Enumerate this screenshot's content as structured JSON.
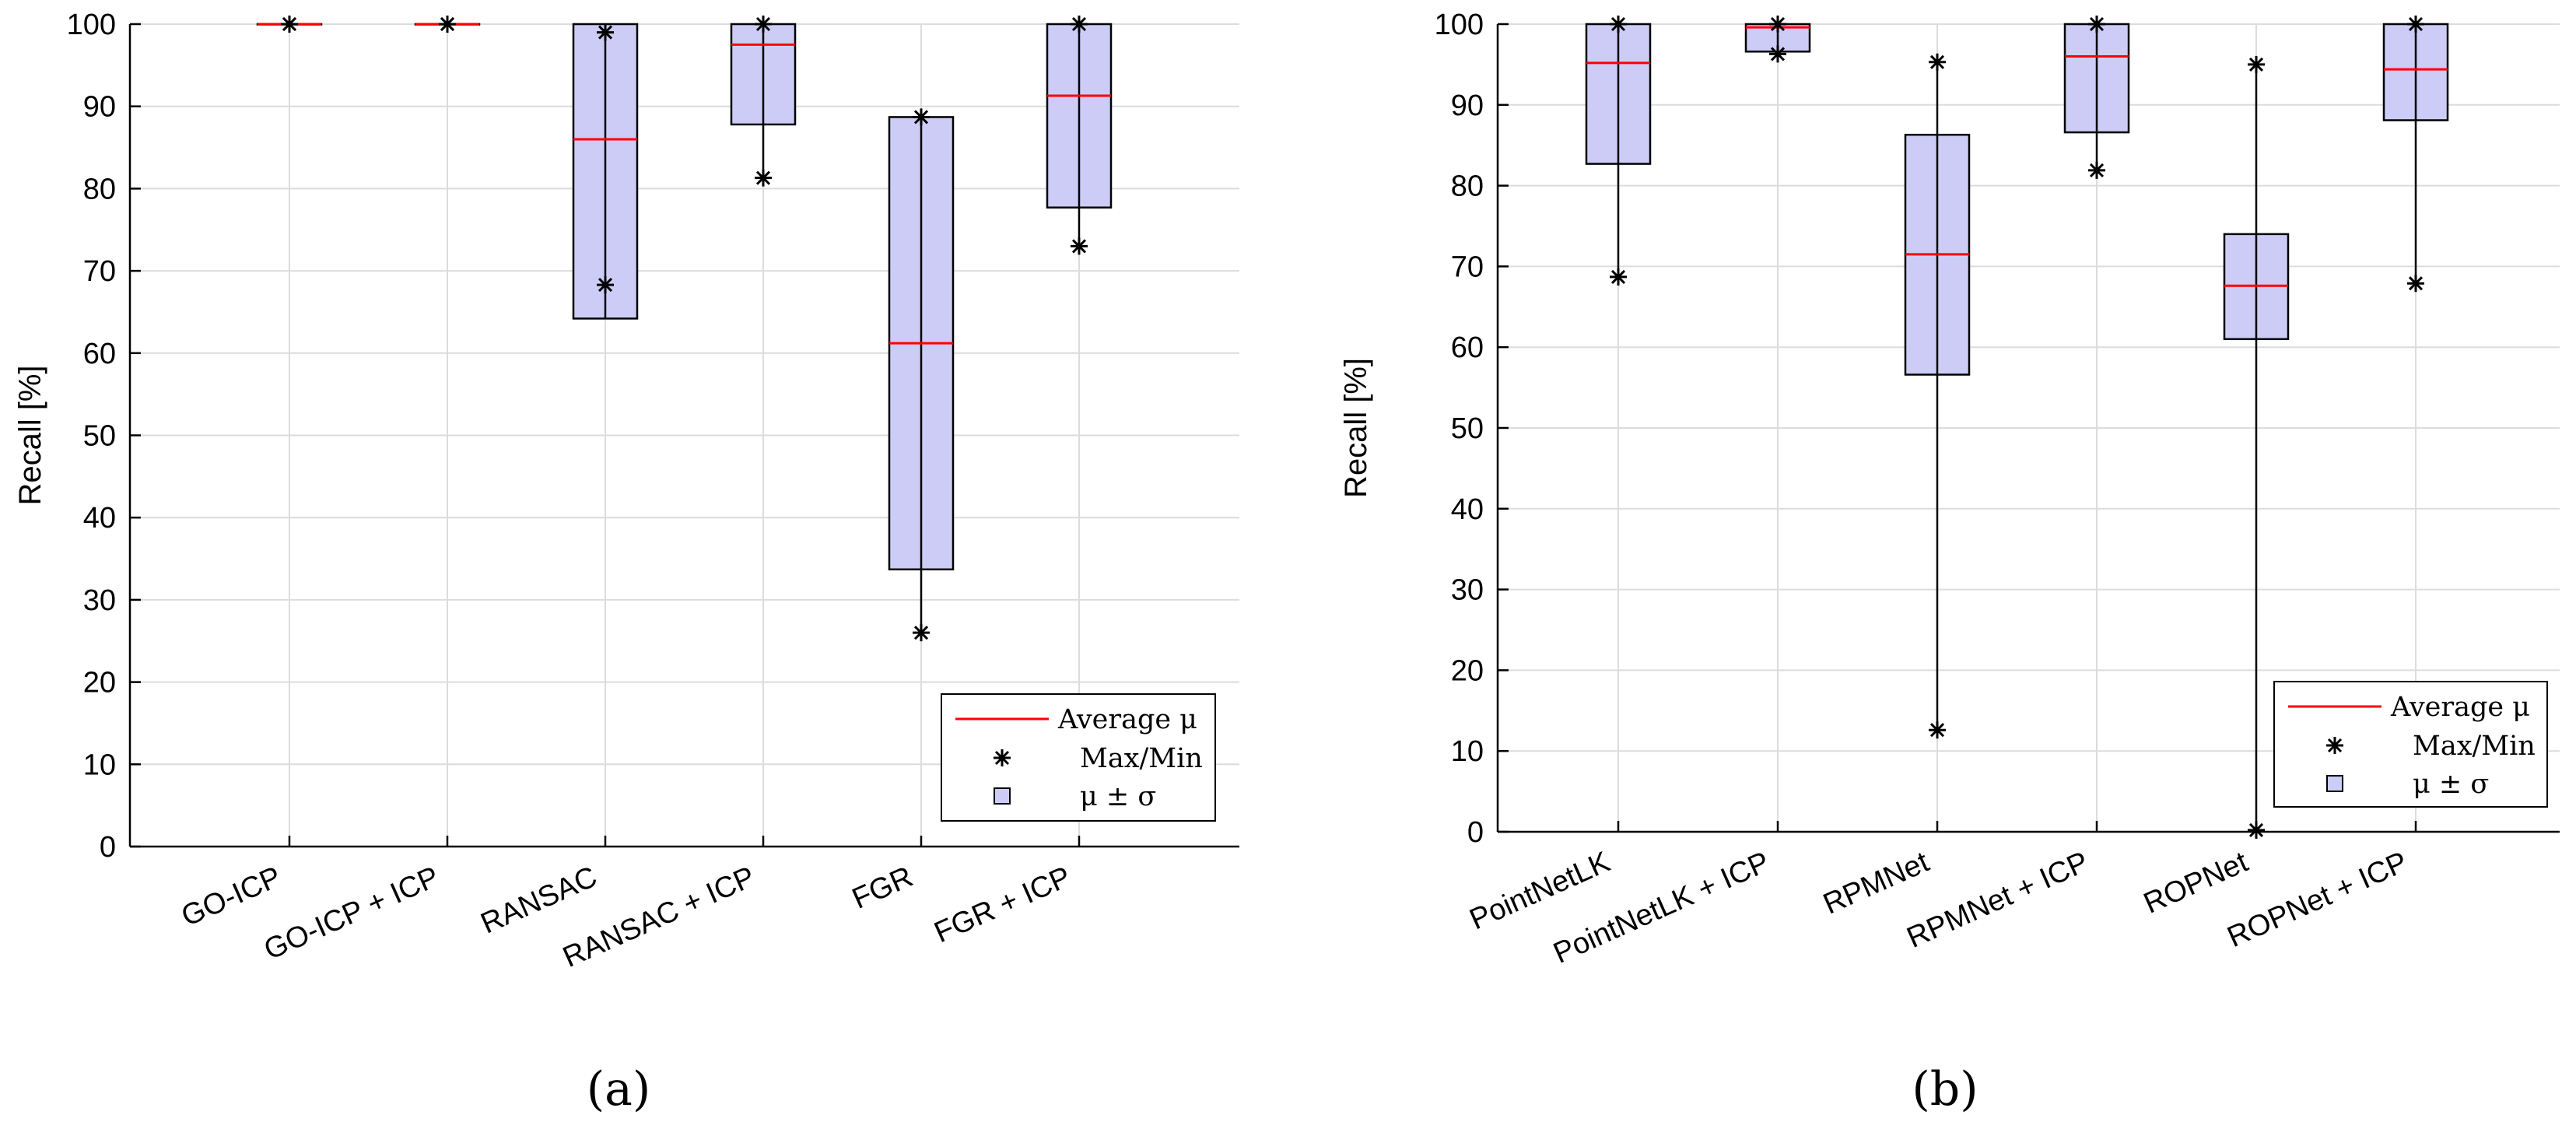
{
  "figure": {
    "colors": {
      "box_fill": "#ccccf7",
      "box_stroke": "#000000",
      "mean_line": "#ff0000",
      "grid": "#dcdcdc",
      "axis": "#000000"
    },
    "legend": {
      "mean": "Average μ",
      "extrema": "Max/Min",
      "std": "μ ± σ"
    }
  },
  "chart_data": [
    {
      "id": "a",
      "type": "box",
      "panel_label": "(a)",
      "ylabel": "Recall [%]",
      "xlabel": "",
      "ylim": [
        0,
        100
      ],
      "yticks": [
        0,
        10,
        20,
        30,
        40,
        50,
        60,
        70,
        80,
        90,
        100
      ],
      "grid": true,
      "legend_position": "bottom-right",
      "categories": [
        "GO-ICP",
        "GO-ICP + ICP",
        "RANSAC",
        "RANSAC + ICP",
        "FGR",
        "FGR + ICP"
      ],
      "mean": [
        100,
        100,
        86,
        97.5,
        61.2,
        91.3
      ],
      "std_low": [
        100,
        100,
        64.2,
        87.8,
        33.7,
        77.7
      ],
      "std_high": [
        100,
        100,
        100,
        100,
        88.7,
        100
      ],
      "max": [
        100,
        100,
        99,
        100,
        88.7,
        100
      ],
      "min": [
        100,
        100,
        68.3,
        81.3,
        26,
        73
      ]
    },
    {
      "id": "b",
      "type": "box",
      "panel_label": "(b)",
      "ylabel": "Recall [%]",
      "xlabel": "",
      "ylim": [
        0,
        100
      ],
      "yticks": [
        0,
        10,
        20,
        30,
        40,
        50,
        60,
        70,
        80,
        90,
        100
      ],
      "grid": true,
      "legend_position": "bottom-right",
      "categories": [
        "PointNetLK",
        "PointNetLK + ICP",
        "RPMNet",
        "RPMNet + ICP",
        "ROPNet",
        "ROPNet + ICP"
      ],
      "mean": [
        95.2,
        99.6,
        71.5,
        96,
        67.6,
        94.4
      ],
      "std_low": [
        82.7,
        96.6,
        56.6,
        86.6,
        61,
        88.1
      ],
      "std_high": [
        100,
        100,
        86.3,
        100,
        74,
        100
      ],
      "max": [
        100,
        100,
        95.3,
        100,
        95,
        100
      ],
      "min": [
        68.7,
        96.3,
        12.6,
        81.9,
        0.2,
        67.9
      ]
    }
  ]
}
